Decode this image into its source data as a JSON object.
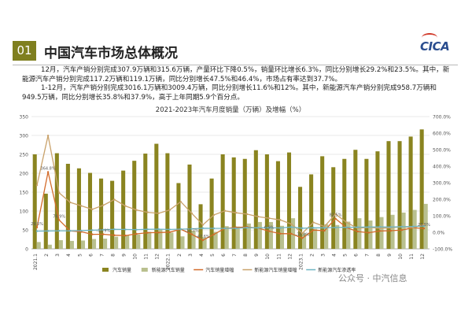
{
  "header": {
    "section_number": "01",
    "title": "中国汽车市场总体概况",
    "logo_text": "CICA"
  },
  "summary": {
    "para1": "12月，汽车产销分别完成307.9万辆和315.6万辆，产量环比下降0.5%，销量环比增长6.3%，同比分别增长29.2%和23.5%。其中，新能源汽车产销分别完成117.2万辆和119.1万辆，同比分别增长47.5%和46.4%，市场占有率达到37.7%。",
    "para2": "1-12月，汽车产销分别完成3016.1万辆和3009.4万辆，同比分别增长11.6%和12%。其中，新能源汽车产销分别完成958.7万辆和949.5万辆，同比分别增长35.8%和37.9%，高于上年同期5.9个百分点。"
  },
  "watermark": "公众号 · 中汽信息",
  "chart_data": {
    "type": "bar",
    "title": "2021-2023年汽车月度销量（万辆）及增幅（%）",
    "categories": [
      "2021.1",
      "2",
      "3",
      "4",
      "5",
      "6",
      "7",
      "8",
      "9",
      "10",
      "11",
      "12",
      "2022.1",
      "2",
      "3",
      "4",
      "5",
      "6",
      "7",
      "8",
      "9",
      "10",
      "11",
      "12",
      "2023.1",
      "2",
      "3",
      "4",
      "5",
      "6",
      "7",
      "8",
      "9",
      "10",
      "11",
      "12"
    ],
    "left_axis": {
      "min": 0,
      "max": 350,
      "ticks": [
        0,
        50,
        100,
        150,
        200,
        250,
        300,
        350
      ]
    },
    "right_axis": {
      "min": -100,
      "max": 700,
      "ticks": [
        "-100.0%",
        "0.0%",
        "100.0%",
        "200.0%",
        "300.0%",
        "400.0%",
        "500.0%",
        "600.0%",
        "700.0%"
      ]
    },
    "series": [
      {
        "name": "汽车销量",
        "kind": "bar",
        "color": "#8a8420",
        "values": [
          250,
          146,
          253,
          225,
          213,
          201,
          186,
          180,
          207,
          233,
          252,
          278,
          253,
          174,
          223,
          118,
          186,
          250,
          242,
          238,
          261,
          250,
          232,
          255,
          164,
          197,
          245,
          216,
          238,
          262,
          238,
          258,
          285,
          285,
          297,
          316
        ]
      },
      {
        "name": "新能源汽车销量",
        "kind": "bar",
        "color": "#b9c08f",
        "values": [
          18,
          11,
          23,
          21,
          22,
          26,
          27,
          32,
          36,
          38,
          45,
          53,
          43,
          33,
          48,
          30,
          45,
          60,
          59,
          67,
          71,
          71,
          61,
          81,
          41,
          53,
          65,
          63,
          72,
          81,
          75,
          84,
          90,
          96,
          103,
          119
        ]
      },
      {
        "name": "汽车销量增幅",
        "kind": "line",
        "axis": "right",
        "color": "#d36b2a",
        "values": [
          29.5,
          364.8,
          74.9,
          8.6,
          3.1,
          -12.4,
          -11.9,
          -17.8,
          -19.6,
          -9.4,
          -2.5,
          -1.6,
          0.9,
          18.7,
          -11.7,
          -47.6,
          -12.6,
          23.8,
          29.7,
          32.1,
          25.7,
          6.9,
          -7.9,
          -8.4,
          -35,
          13.5,
          9.7,
          82.5,
          27.9,
          4.8,
          -2.3,
          8.2,
          9.5,
          13.8,
          27.4,
          23.5
        ]
      },
      {
        "name": "新能源汽车销量增幅",
        "kind": "line",
        "axis": "right",
        "color": "#c9a26b",
        "values": [
          285,
          585,
          239,
          181,
          160,
          139,
          164,
          198,
          159,
          135,
          121,
          115,
          135,
          185,
          115,
          45,
          105,
          130,
          118,
          110,
          95,
          85,
          75,
          50,
          -5,
          60,
          35,
          110,
          60,
          25,
          30,
          25,
          27,
          34,
          28,
          46
        ]
      },
      {
        "name": "新能源汽车渗透率",
        "kind": "line",
        "axis": "right",
        "color": "#6fb5c3",
        "values": [
          7,
          8,
          9,
          9,
          10,
          13,
          15,
          18,
          17,
          16,
          18,
          19,
          17,
          19,
          21,
          25,
          24,
          24,
          24,
          28,
          27,
          28,
          26,
          32,
          25,
          27,
          27,
          29,
          30,
          31,
          32,
          33,
          32,
          34,
          35,
          38
        ]
      }
    ],
    "data_labels": [
      {
        "series": 2,
        "index": 0,
        "text": "29.5%"
      },
      {
        "series": 2,
        "index": 1,
        "text": "364.8%"
      },
      {
        "series": 2,
        "index": 2,
        "text": "74.9%"
      },
      {
        "series": 2,
        "index": 6,
        "text": "-11.9%"
      },
      {
        "series": 2,
        "index": 14,
        "text": "-11.7%"
      },
      {
        "series": 2,
        "index": 15,
        "text": "-47.6%"
      },
      {
        "series": 2,
        "index": 21,
        "text": "6.9%"
      },
      {
        "series": 2,
        "index": 24,
        "text": "-35.0%"
      },
      {
        "series": 2,
        "index": 27,
        "text": "82.5%"
      },
      {
        "series": 2,
        "index": 35,
        "text": "23.5%"
      }
    ],
    "legend_position": "bottom",
    "grid": true
  }
}
